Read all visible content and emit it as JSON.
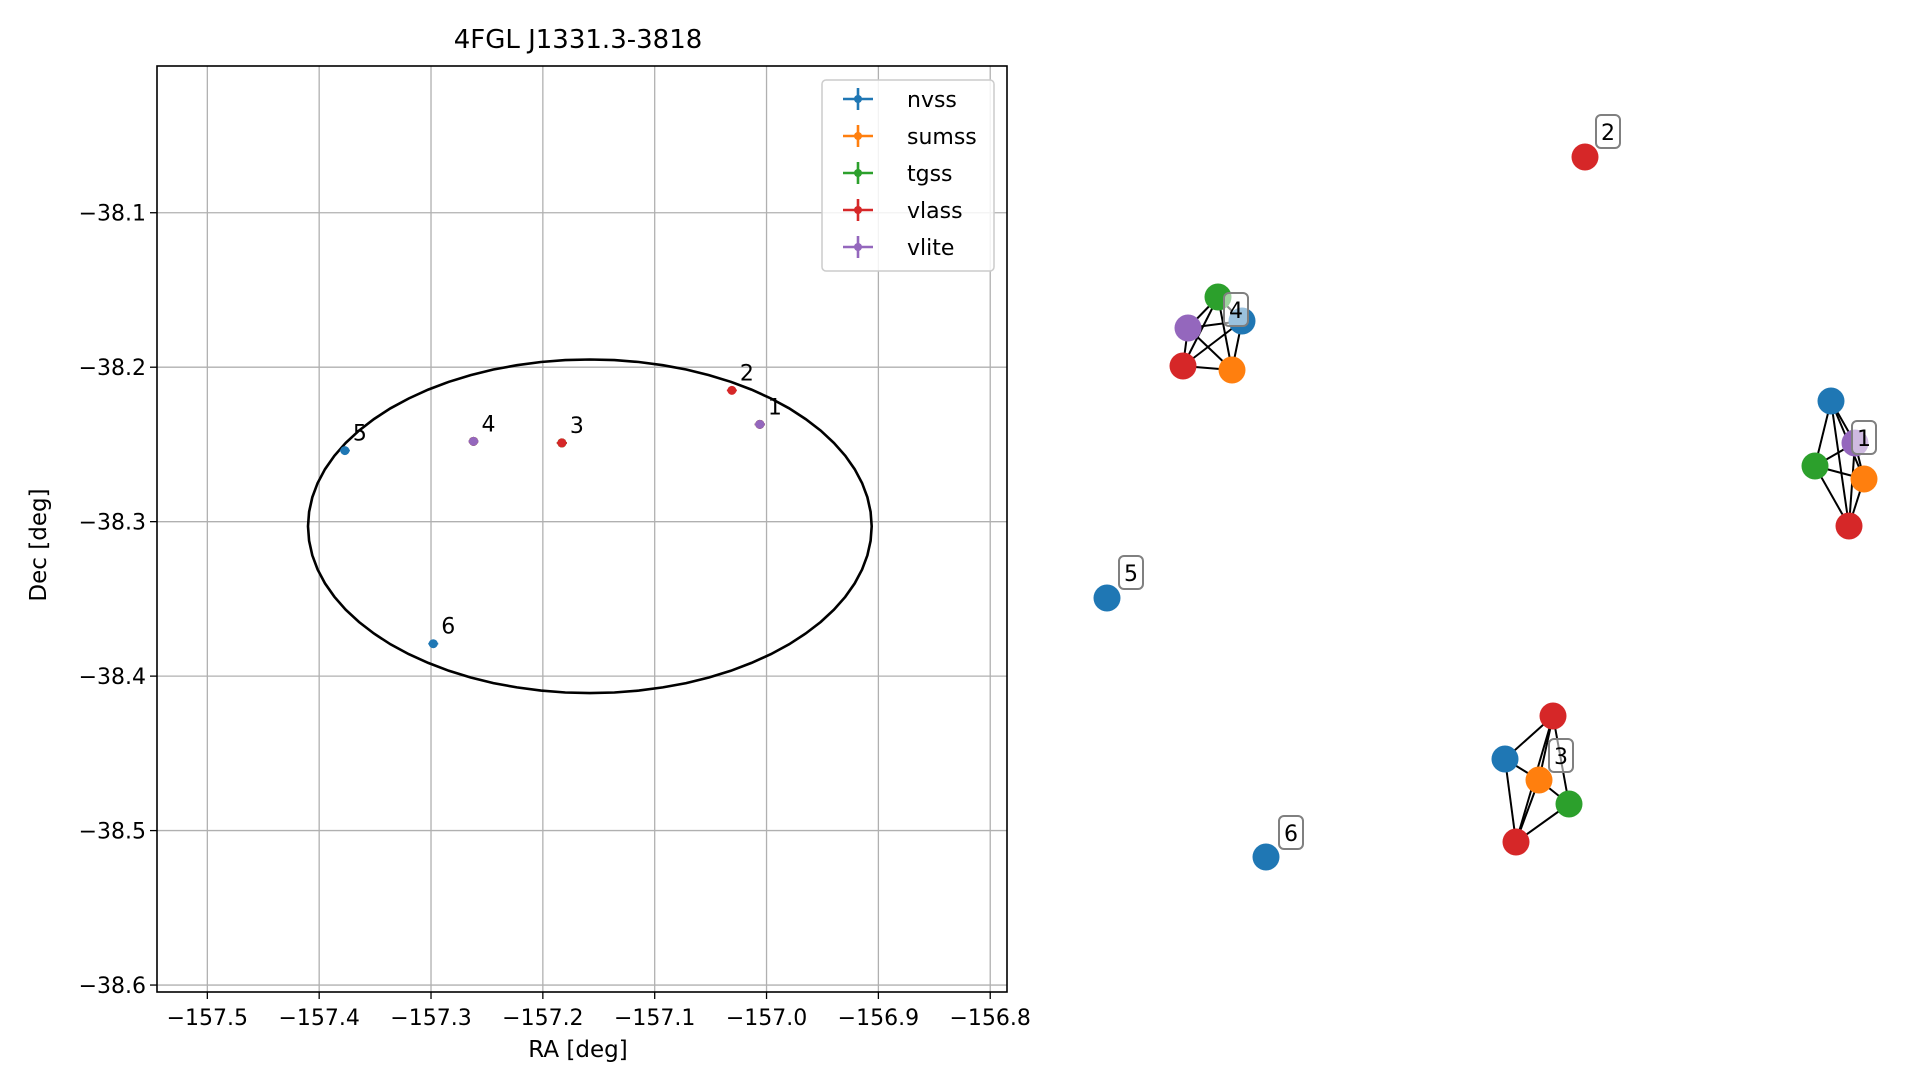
{
  "chart_data": [
    {
      "type": "scatter",
      "title": "4FGL J1331.3-3818",
      "xlabel": "RA [deg]",
      "ylabel": "Dec [deg]",
      "xlim": [
        -157.545,
        -156.785
      ],
      "ylim": [
        -38.6045,
        -38.005
      ],
      "grid": true,
      "legend_placement": "top-right",
      "x_ticks": [
        -157.5,
        -157.4,
        -157.3,
        -157.2,
        -157.1,
        -157.0,
        -156.9,
        -156.8
      ],
      "x_tick_labels": [
        "−157.5",
        "−157.4",
        "−157.3",
        "−157.2",
        "−157.1",
        "−157.0",
        "−156.9",
        "−156.8"
      ],
      "y_ticks": [
        -38.1,
        -38.2,
        -38.3,
        -38.4,
        -38.5,
        -38.6
      ],
      "y_tick_labels": [
        "−38.1",
        "−38.2",
        "−38.3",
        "−38.4",
        "−38.5",
        "−38.6"
      ],
      "ellipse": {
        "center": [
          -157.158,
          -38.303
        ],
        "semi_axis_ra": 0.252,
        "semi_axis_dec": 0.108
      },
      "series": [
        {
          "name": "nvss",
          "color": "#1f77b4",
          "points": [
            [
              -157.006,
              -38.237
            ],
            [
              -157.183,
              -38.249
            ],
            [
              -157.262,
              -38.248
            ],
            [
              -157.377,
              -38.254
            ],
            [
              -157.298,
              -38.379
            ]
          ]
        },
        {
          "name": "sumss",
          "color": "#ff7f0e",
          "points": [
            [
              -157.006,
              -38.237
            ],
            [
              -157.183,
              -38.249
            ],
            [
              -157.262,
              -38.248
            ]
          ]
        },
        {
          "name": "tgss",
          "color": "#2ca02c",
          "points": [
            [
              -157.006,
              -38.237
            ],
            [
              -157.183,
              -38.249
            ],
            [
              -157.262,
              -38.248
            ]
          ]
        },
        {
          "name": "vlass",
          "color": "#d62728",
          "points": [
            [
              -157.006,
              -38.237
            ],
            [
              -157.031,
              -38.215
            ],
            [
              -157.183,
              -38.249
            ],
            [
              -157.262,
              -38.248
            ]
          ]
        },
        {
          "name": "vlite",
          "color": "#9467bd",
          "points": [
            [
              -157.006,
              -38.237
            ],
            [
              -157.262,
              -38.248
            ]
          ]
        }
      ],
      "labels": [
        {
          "text": "1",
          "x": -157.006,
          "y": -38.237
        },
        {
          "text": "2",
          "x": -157.031,
          "y": -38.215
        },
        {
          "text": "3",
          "x": -157.183,
          "y": -38.249
        },
        {
          "text": "4",
          "x": -157.262,
          "y": -38.248
        },
        {
          "text": "5",
          "x": -157.377,
          "y": -38.254
        },
        {
          "text": "6",
          "x": -157.298,
          "y": -38.379
        }
      ]
    },
    {
      "type": "network",
      "label_color": "#808080",
      "clusters": [
        {
          "label": "1",
          "nodes": [
            {
              "survey": "nvss",
              "color": "#1f77b4"
            },
            {
              "survey": "vlite",
              "color": "#9467bd"
            },
            {
              "survey": "tgss",
              "color": "#2ca02c"
            },
            {
              "survey": "sumss",
              "color": "#ff7f0e"
            },
            {
              "survey": "vlass",
              "color": "#d62728"
            }
          ],
          "edges": [
            [
              0,
              1
            ],
            [
              0,
              2
            ],
            [
              0,
              3
            ],
            [
              0,
              4
            ],
            [
              1,
              2
            ],
            [
              1,
              3
            ],
            [
              1,
              4
            ],
            [
              2,
              3
            ],
            [
              2,
              4
            ],
            [
              3,
              4
            ]
          ]
        },
        {
          "label": "2",
          "nodes": [
            {
              "survey": "vlass",
              "color": "#d62728"
            }
          ],
          "edges": []
        },
        {
          "label": "3",
          "nodes": [
            {
              "survey": "vlass",
              "color": "#d62728"
            },
            {
              "survey": "nvss",
              "color": "#1f77b4"
            },
            {
              "survey": "sumss",
              "color": "#ff7f0e"
            },
            {
              "survey": "tgss",
              "color": "#2ca02c"
            },
            {
              "survey": "vlass",
              "color": "#d62728"
            }
          ],
          "edges": [
            [
              0,
              1
            ],
            [
              0,
              2
            ],
            [
              0,
              3
            ],
            [
              1,
              2
            ],
            [
              1,
              4
            ],
            [
              2,
              3
            ],
            [
              2,
              4
            ],
            [
              3,
              4
            ],
            [
              0,
              4
            ]
          ]
        },
        {
          "label": "4",
          "nodes": [
            {
              "survey": "tgss",
              "color": "#2ca02c"
            },
            {
              "survey": "nvss",
              "color": "#1f77b4"
            },
            {
              "survey": "vlite",
              "color": "#9467bd"
            },
            {
              "survey": "vlass",
              "color": "#d62728"
            },
            {
              "survey": "sumss",
              "color": "#ff7f0e"
            }
          ],
          "edges": [
            [
              0,
              1
            ],
            [
              0,
              2
            ],
            [
              0,
              3
            ],
            [
              0,
              4
            ],
            [
              1,
              2
            ],
            [
              1,
              3
            ],
            [
              1,
              4
            ],
            [
              2,
              3
            ],
            [
              2,
              4
            ],
            [
              3,
              4
            ]
          ]
        },
        {
          "label": "5",
          "nodes": [
            {
              "survey": "nvss",
              "color": "#1f77b4"
            }
          ],
          "edges": []
        },
        {
          "label": "6",
          "nodes": [
            {
              "survey": "nvss",
              "color": "#1f77b4"
            }
          ],
          "edges": []
        }
      ]
    }
  ]
}
